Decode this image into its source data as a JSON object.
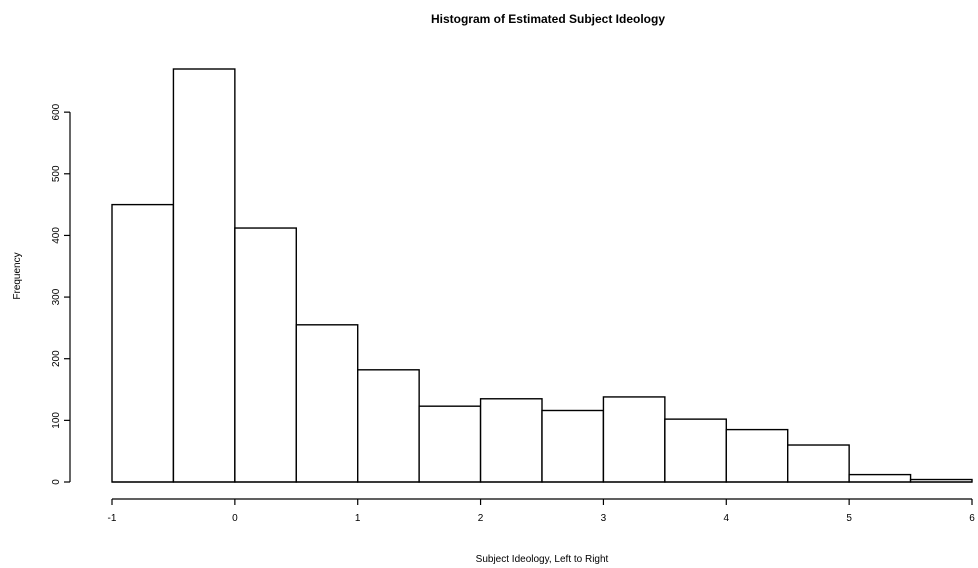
{
  "chart_data": {
    "type": "bar",
    "title": "Histogram of Estimated Subject Ideology",
    "xlabel": "Subject Ideology, Left to Right",
    "ylabel": "Frequency",
    "bins": [
      {
        "x0": -1.0,
        "x1": -0.5,
        "count": 450
      },
      {
        "x0": -0.5,
        "x1": 0.0,
        "count": 670
      },
      {
        "x0": 0.0,
        "x1": 0.5,
        "count": 412
      },
      {
        "x0": 0.5,
        "x1": 1.0,
        "count": 255
      },
      {
        "x0": 1.0,
        "x1": 1.5,
        "count": 182
      },
      {
        "x0": 1.5,
        "x1": 2.0,
        "count": 123
      },
      {
        "x0": 2.0,
        "x1": 2.5,
        "count": 135
      },
      {
        "x0": 2.5,
        "x1": 3.0,
        "count": 116
      },
      {
        "x0": 3.0,
        "x1": 3.5,
        "count": 138
      },
      {
        "x0": 3.5,
        "x1": 4.0,
        "count": 102
      },
      {
        "x0": 4.0,
        "x1": 4.5,
        "count": 85
      },
      {
        "x0": 4.5,
        "x1": 5.0,
        "count": 60
      },
      {
        "x0": 5.0,
        "x1": 5.5,
        "count": 12
      },
      {
        "x0": 5.5,
        "x1": 6.0,
        "count": 4
      }
    ],
    "xlim": [
      -1,
      6
    ],
    "ylim": [
      0,
      670
    ],
    "x_ticks": [
      "-1",
      "0",
      "1",
      "2",
      "3",
      "4",
      "5",
      "6"
    ],
    "y_ticks": [
      "0",
      "100",
      "200",
      "300",
      "400",
      "500",
      "600"
    ],
    "grid": false,
    "colors": {
      "bar_fill": "#ffffff",
      "bar_stroke": "#000000"
    }
  }
}
